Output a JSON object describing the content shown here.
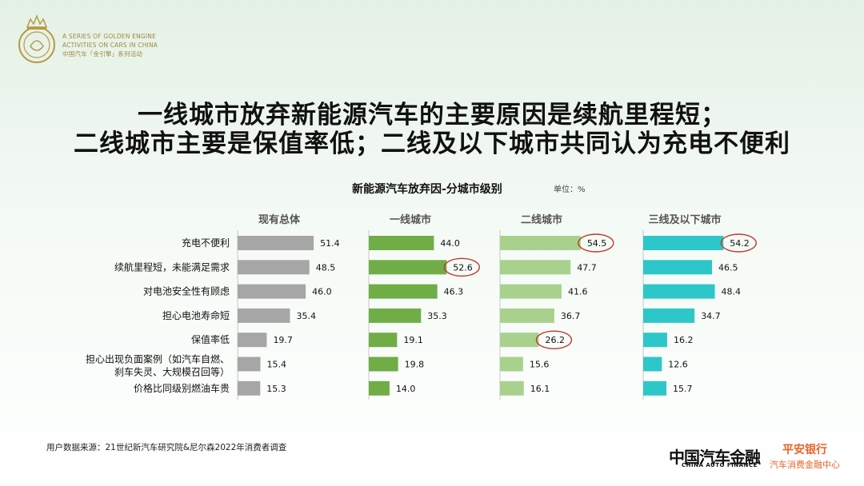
{
  "logo": {
    "icon": "golden-engine-crest-icon",
    "line1": "A SERIES OF GOLDEN ENGINE",
    "line2": "ACTIVITIES ON CARS IN CHINA",
    "line3": "中国汽车「金引擎」系列活动"
  },
  "headline": {
    "line1": "一线城市放弃新能源汽车的主要原因是续航里程短；",
    "line2": "二线城市主要是保值率低；二线及以下城市共同认为充电不便利"
  },
  "chart_title": "新能源汽车放弃因-分城市级别",
  "unit": "单位：%",
  "source": "用户数据来源：21世纪新汽车研究院&尼尔森2022年消费者调查",
  "brands": {
    "china_auto_finance": "中国汽车金融",
    "china_auto_finance_en": "CHINA AUTO FINANCE",
    "pingan": "平安银行",
    "pingan_sub": "汽车消费金融中心"
  },
  "chart_data": {
    "type": "bar",
    "orientation": "horizontal",
    "categories": [
      "充电不便利",
      "续航里程短，未能满足需求",
      "对电池安全性有顾虑",
      "担心电池寿命短",
      "保值率低",
      [
        "担心出现负面案例（如汽车自燃、",
        "刹车失灵、大规模召回等）"
      ],
      "价格比同级别燃油车贵"
    ],
    "series": [
      {
        "name": "现有总体",
        "color": "#a6a6a6",
        "values": [
          51.4,
          48.5,
          46.0,
          35.4,
          19.7,
          15.4,
          15.3
        ],
        "circled": []
      },
      {
        "name": "一线城市",
        "color": "#70ad47",
        "values": [
          44.0,
          52.6,
          46.3,
          35.3,
          19.1,
          19.8,
          14.0
        ],
        "circled": [
          1
        ]
      },
      {
        "name": "二线城市",
        "color": "#a9d18e",
        "values": [
          54.5,
          47.7,
          41.6,
          36.7,
          26.2,
          15.6,
          16.1
        ],
        "circled": [
          0,
          4
        ]
      },
      {
        "name": "三线及以下城市",
        "color": "#2ec7c9",
        "values": [
          54.2,
          46.5,
          48.4,
          34.7,
          16.2,
          12.6,
          15.7
        ],
        "circled": [
          0
        ]
      }
    ],
    "highlight_color": "#c0392b"
  }
}
